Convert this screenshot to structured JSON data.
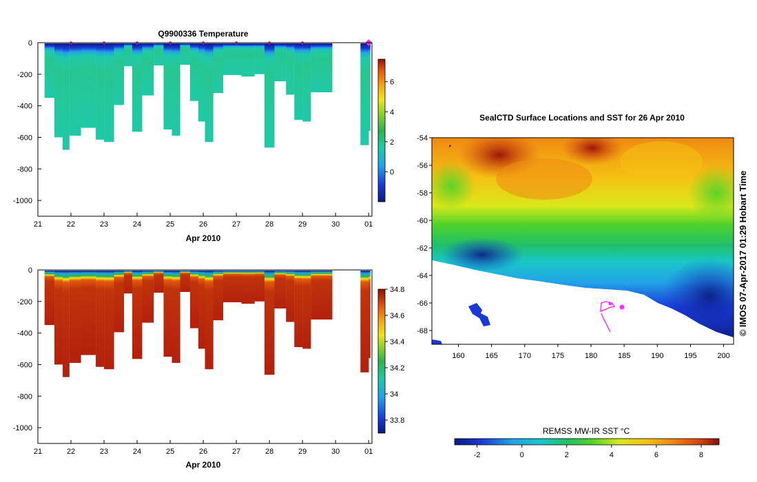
{
  "colors": {
    "temp_ramp": [
      "#0a1a80",
      "#1a3ad6",
      "#22a3e8",
      "#1fc9a8",
      "#2db24a",
      "#8fd22a",
      "#f0e51b",
      "#f5a413",
      "#e25a0c",
      "#9a0e0a"
    ],
    "sal_ramp": [
      "#0a1a80",
      "#1a3ad6",
      "#22a3e8",
      "#1fc9a8",
      "#2db24a",
      "#8fd22a",
      "#f0e51b",
      "#f5a413",
      "#e25a0c",
      "#b3200c",
      "#8a0f0a"
    ],
    "sst_ramp": [
      "#0a1a80",
      "#1a3ad6",
      "#22a3e8",
      "#19c7c7",
      "#1fbf6a",
      "#4fd32a",
      "#d9e81b",
      "#f5c313",
      "#f08a12",
      "#d9470c",
      "#8a0f0a"
    ],
    "marker": "#e030e0",
    "track": "#ff30ff"
  },
  "chart_data": [
    {
      "type": "heatmap",
      "title": "Q9900336  Temperature",
      "xlabel": "Apr 2010",
      "ylabel": "",
      "x_ticks": [
        "21",
        "22",
        "23",
        "24",
        "25",
        "26",
        "27",
        "28",
        "29",
        "30",
        "01"
      ],
      "y_ticks": [
        "0",
        "-200",
        "-400",
        "-600",
        "-800",
        "-1000"
      ],
      "xlim": [
        21,
        31.1
      ],
      "ylim": [
        -1100,
        0
      ],
      "colorbar_ticks": [
        "6",
        "4",
        "2",
        "0"
      ],
      "colorbar_range": [
        -2,
        7.5
      ],
      "profiles": [
        {
          "x": 21.2,
          "x_end": 21.5,
          "max_depth": 350
        },
        {
          "x": 21.5,
          "x_end": 21.75,
          "max_depth": 600
        },
        {
          "x": 21.75,
          "x_end": 21.95,
          "max_depth": 680
        },
        {
          "x": 21.95,
          "x_end": 22.3,
          "max_depth": 590
        },
        {
          "x": 22.3,
          "x_end": 22.75,
          "max_depth": 540
        },
        {
          "x": 22.75,
          "x_end": 23.0,
          "max_depth": 615
        },
        {
          "x": 23.0,
          "x_end": 23.3,
          "max_depth": 630
        },
        {
          "x": 23.3,
          "x_end": 23.6,
          "max_depth": 395
        },
        {
          "x": 23.6,
          "x_end": 23.85,
          "max_depth": 150
        },
        {
          "x": 23.85,
          "x_end": 24.15,
          "max_depth": 565
        },
        {
          "x": 24.15,
          "x_end": 24.5,
          "max_depth": 335
        },
        {
          "x": 24.5,
          "x_end": 24.8,
          "max_depth": 145
        },
        {
          "x": 24.8,
          "x_end": 25.05,
          "max_depth": 550
        },
        {
          "x": 25.05,
          "x_end": 25.3,
          "max_depth": 590
        },
        {
          "x": 25.3,
          "x_end": 25.6,
          "max_depth": 140
        },
        {
          "x": 25.6,
          "x_end": 25.85,
          "max_depth": 370
        },
        {
          "x": 25.85,
          "x_end": 26.05,
          "max_depth": 500
        },
        {
          "x": 26.05,
          "x_end": 26.3,
          "max_depth": 630
        },
        {
          "x": 26.3,
          "x_end": 26.6,
          "max_depth": 320
        },
        {
          "x": 26.6,
          "x_end": 27.15,
          "max_depth": 205
        },
        {
          "x": 27.15,
          "x_end": 27.55,
          "max_depth": 215
        },
        {
          "x": 27.55,
          "x_end": 27.85,
          "max_depth": 200
        },
        {
          "x": 27.85,
          "x_end": 28.15,
          "max_depth": 665
        },
        {
          "x": 28.15,
          "x_end": 28.5,
          "max_depth": 245
        },
        {
          "x": 28.5,
          "x_end": 28.75,
          "max_depth": 330
        },
        {
          "x": 28.75,
          "x_end": 29.0,
          "max_depth": 490
        },
        {
          "x": 29.0,
          "x_end": 29.25,
          "max_depth": 500
        },
        {
          "x": 29.25,
          "x_end": 29.9,
          "max_depth": 315
        },
        {
          "x": 30.75,
          "x_end": 31.0,
          "max_depth": 650
        },
        {
          "x": 31.0,
          "x_end": 31.05,
          "max_depth": 560
        }
      ],
      "markers_x": [
        22,
        23,
        24,
        25,
        26,
        27,
        28,
        29,
        31
      ]
    },
    {
      "type": "heatmap",
      "title": "",
      "xlabel": "Apr 2010",
      "ylabel": "",
      "x_ticks": [
        "21",
        "22",
        "23",
        "24",
        "25",
        "26",
        "27",
        "28",
        "29",
        "30",
        "01"
      ],
      "y_ticks": [
        "0",
        "-200",
        "-400",
        "-600",
        "-800",
        "-1000"
      ],
      "xlim": [
        21,
        31.1
      ],
      "ylim": [
        -1100,
        0
      ],
      "colorbar_ticks": [
        "34.8",
        "34.6",
        "34.4",
        "34.2",
        "34",
        "33.8"
      ],
      "colorbar_range": [
        33.7,
        34.8
      ]
    },
    {
      "type": "heatmap",
      "title": "SealCTD Surface Locations and SST for 26 Apr 2010",
      "xlabel": "",
      "ylabel": "",
      "x_ticks": [
        "160",
        "165",
        "170",
        "175",
        "180",
        "185",
        "190",
        "195",
        "200"
      ],
      "y_ticks": [
        "-54",
        "-56",
        "-58",
        "-60",
        "-62",
        "-64",
        "-66",
        "-68"
      ],
      "xlim": [
        156,
        201.5
      ],
      "ylim": [
        -69,
        -54
      ],
      "colorbar_label": "REMSS MW-IR SST °C",
      "colorbar_ticks": [
        "-2",
        "0",
        "2",
        "4",
        "6",
        "8"
      ],
      "colorbar_range": [
        -3,
        8.8
      ],
      "credit": "© IMOS 07-Apr-2017 01:29 Hobart Time"
    }
  ]
}
